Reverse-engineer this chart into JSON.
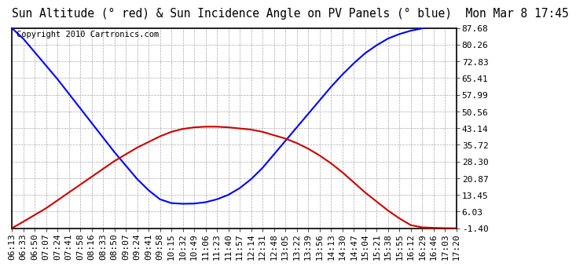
{
  "title": "Sun Altitude (° red) & Sun Incidence Angle on PV Panels (° blue)  Mon Mar 8 17:45",
  "copyright": "Copyright 2010 Cartronics.com",
  "yticks": [
    87.68,
    80.26,
    72.83,
    65.41,
    57.99,
    50.56,
    43.14,
    35.72,
    28.3,
    20.87,
    13.45,
    6.03,
    -1.4
  ],
  "ymin": -1.4,
  "ymax": 87.68,
  "x_labels": [
    "06:13",
    "06:33",
    "06:50",
    "07:07",
    "07:24",
    "07:41",
    "07:58",
    "08:16",
    "08:33",
    "08:50",
    "09:07",
    "09:24",
    "09:41",
    "09:58",
    "10:15",
    "10:32",
    "10:49",
    "11:06",
    "11:23",
    "11:40",
    "11:57",
    "12:14",
    "12:31",
    "12:48",
    "13:05",
    "13:22",
    "13:39",
    "13:56",
    "14:13",
    "14:30",
    "14:47",
    "15:04",
    "15:21",
    "15:38",
    "15:55",
    "16:12",
    "16:29",
    "16:46",
    "17:03",
    "17:20"
  ],
  "blue_color": "#0000ff",
  "red_color": "#cc0000",
  "grid_color": "#aaaaaa",
  "background_color": "#ffffff",
  "title_fontsize": 10.5,
  "tick_fontsize": 8,
  "copyright_fontsize": 7.5,
  "blue_y_values": [
    87.68,
    83.0,
    77.0,
    71.0,
    65.0,
    58.5,
    52.0,
    45.5,
    39.0,
    32.5,
    26.5,
    20.5,
    15.5,
    11.5,
    9.8,
    9.5,
    9.6,
    10.2,
    11.5,
    13.5,
    16.5,
    20.5,
    25.5,
    31.5,
    37.5,
    43.5,
    49.5,
    55.5,
    61.5,
    67.0,
    72.0,
    76.5,
    80.0,
    83.0,
    85.0,
    86.5,
    87.5,
    88.5,
    89.5,
    90.5
  ],
  "red_y_values": [
    -1.4,
    1.5,
    4.5,
    7.5,
    11.0,
    14.5,
    18.0,
    21.5,
    25.0,
    28.5,
    31.5,
    34.5,
    37.0,
    39.5,
    41.5,
    42.8,
    43.5,
    43.8,
    43.8,
    43.5,
    43.0,
    42.5,
    41.5,
    40.0,
    38.5,
    36.5,
    34.0,
    31.0,
    27.5,
    23.5,
    19.0,
    14.5,
    10.5,
    6.5,
    3.0,
    0.0,
    -1.0,
    -1.2,
    -1.35,
    -1.4
  ]
}
